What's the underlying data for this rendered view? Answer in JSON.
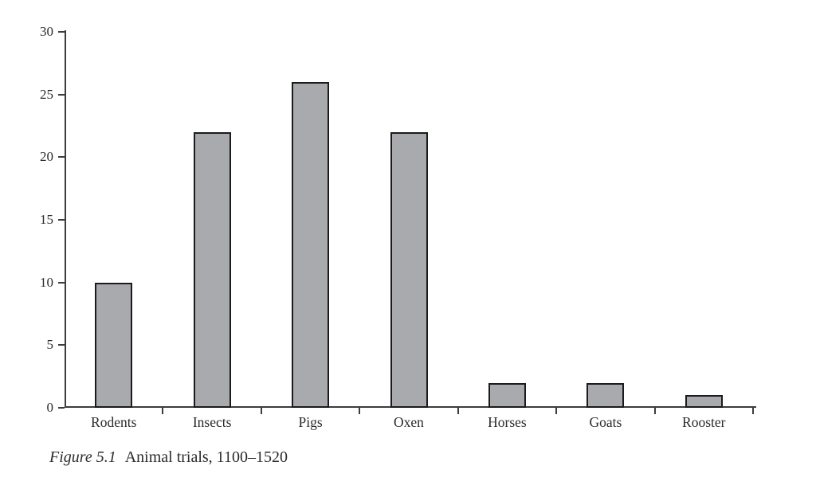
{
  "figure": {
    "caption_label": "Figure 5.1",
    "caption_text": "Animal trials, 1100–1520"
  },
  "chart_data": {
    "type": "bar",
    "categories": [
      "Rodents",
      "Insects",
      "Pigs",
      "Oxen",
      "Horses",
      "Goats",
      "Rooster"
    ],
    "values": [
      10,
      22,
      26,
      22,
      2,
      2,
      1
    ],
    "title": "",
    "xlabel": "",
    "ylabel": "",
    "ylim": [
      0,
      30
    ],
    "yticks": [
      0,
      5,
      10,
      15,
      20,
      25,
      30
    ],
    "bar_color": "#a9aaad",
    "bar_border_color": "#1b1b1b",
    "axis_color": "#3d3d3d",
    "grid": false,
    "legend": "none"
  }
}
